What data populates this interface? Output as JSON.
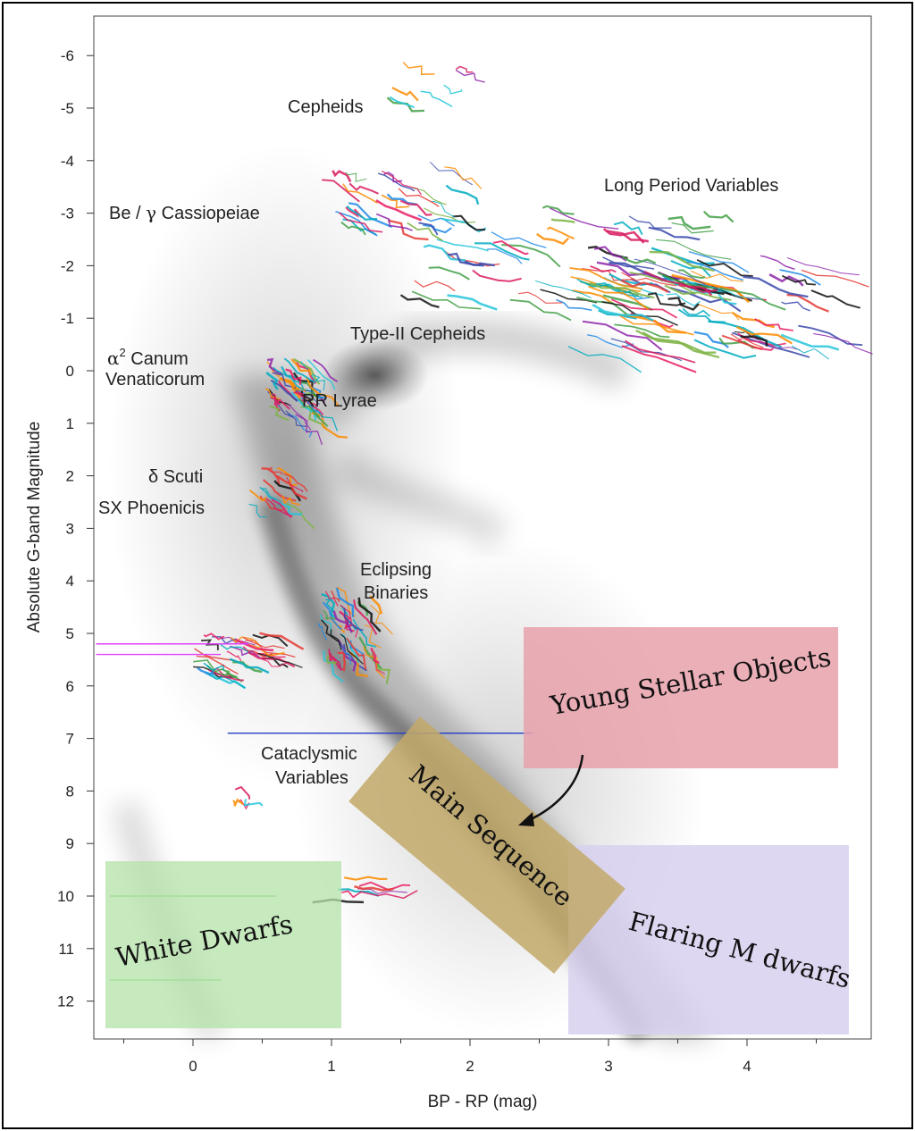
{
  "chart_data": {
    "type": "scatter",
    "title": "",
    "xlabel": "BP - RP (mag)",
    "ylabel": "Absolute G-band Magnitude",
    "xlim": [
      -0.7,
      4.9
    ],
    "ylim": [
      12.7,
      -6.4
    ],
    "x_ticks": [
      "0",
      "1",
      "2",
      "3",
      "4"
    ],
    "y_ticks": [
      "-6",
      "-5",
      "-4",
      "-3",
      "-2",
      "-1",
      "0",
      "1",
      "2",
      "3",
      "4",
      "5",
      "6",
      "7",
      "8",
      "9",
      "10",
      "11",
      "12"
    ],
    "variable_classes": [
      {
        "name": "Cepheids",
        "x": 1.0,
        "y": -5.0
      },
      {
        "name": "Long Period Variables",
        "x": 3.7,
        "y": -3.4
      },
      {
        "name": "Be / γ Cassiopeiae",
        "x": -0.15,
        "y": -2.9
      },
      {
        "name": "Type-II Cepheids",
        "x": 1.65,
        "y": -0.65
      },
      {
        "name": "α² Canum Venaticorum",
        "x": -0.3,
        "y": 0.05
      },
      {
        "name": "RR Lyrae",
        "x": 1.0,
        "y": 0.6
      },
      {
        "name": "δ Scuti",
        "x": -0.1,
        "y": 2.0
      },
      {
        "name": "SX Phoenicis",
        "x": -0.2,
        "y": 2.6
      },
      {
        "name": "Eclipsing Binaries",
        "x": 1.5,
        "y": 4.0
      },
      {
        "name": "Cataclysmic Variables",
        "x": 0.9,
        "y": 7.6
      },
      {
        "name": "Young Stellar Objects",
        "x": 3.3,
        "y": 5.7
      },
      {
        "name": "Main Sequence",
        "x": 2.1,
        "y": 9.0
      },
      {
        "name": "White Dwarfs",
        "x": 0.25,
        "y": 10.9
      },
      {
        "name": "Flaring M dwarfs",
        "x": 3.8,
        "y": 11.0
      }
    ],
    "highlight_regions": [
      {
        "name": "Young Stellar Objects",
        "color": "#e8a1ac",
        "x_range": [
          2.4,
          4.7
        ],
        "y_range": [
          4.9,
          7.6
        ]
      },
      {
        "name": "Main Sequence",
        "color": "#c2a96a"
      },
      {
        "name": "White Dwarfs",
        "color": "#b3e2a8",
        "x_range": [
          -0.6,
          1.05
        ],
        "y_range": [
          9.4,
          12.5
        ]
      },
      {
        "name": "Flaring M dwarfs",
        "color": "#d8d0ef",
        "x_range": [
          2.7,
          4.75
        ],
        "y_range": [
          9.05,
          12.6
        ]
      }
    ],
    "legend": "none",
    "grid": false
  },
  "labels": {
    "cepheids": "Cepheids",
    "lpv": "Long Period Variables",
    "be_prefix": "Be / ",
    "be_gamma": "γ",
    "be_suffix": " Cassiopeiae",
    "type2": "Type-II Cepheids",
    "alpha": "α",
    "alpha_sup": "2",
    "canum": " Canum",
    "venaticorum": "Venaticorum",
    "rrlyrae": "RR Lyrae",
    "dscuti": "δ Scuti",
    "sxphe": "SX Phoenicis",
    "eclipsing1": "Eclipsing",
    "eclipsing2": "Binaries",
    "cataclysmic1": "Cataclysmic",
    "cataclysmic2": "Variables",
    "yso": "Young Stellar Objects",
    "main_sequence": "Main Sequence",
    "white_dwarfs": "White Dwarfs",
    "flaring": "Flaring M dwarfs"
  }
}
